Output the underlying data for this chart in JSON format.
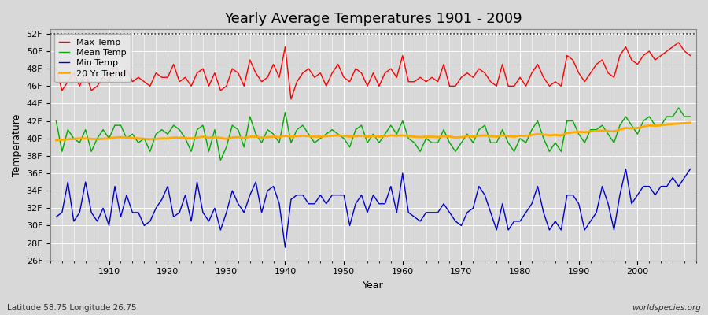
{
  "title": "Yearly Average Temperatures 1901 - 2009",
  "xlabel": "Year",
  "ylabel": "Temperature",
  "subtitle_left": "Latitude 58.75 Longitude 26.75",
  "subtitle_right": "worldspecies.org",
  "ylim": [
    26,
    52.5
  ],
  "yticks": [
    26,
    28,
    30,
    32,
    34,
    36,
    38,
    40,
    42,
    44,
    46,
    48,
    50,
    52
  ],
  "ytick_labels": [
    "26F",
    "28F",
    "30F",
    "32F",
    "34F",
    "36F",
    "38F",
    "40F",
    "42F",
    "44F",
    "46F",
    "48F",
    "50F",
    "52F"
  ],
  "years": [
    1901,
    1902,
    1903,
    1904,
    1905,
    1906,
    1907,
    1908,
    1909,
    1910,
    1911,
    1912,
    1913,
    1914,
    1915,
    1916,
    1917,
    1918,
    1919,
    1920,
    1921,
    1922,
    1923,
    1924,
    1925,
    1926,
    1927,
    1928,
    1929,
    1930,
    1931,
    1932,
    1933,
    1934,
    1935,
    1936,
    1937,
    1938,
    1939,
    1940,
    1941,
    1942,
    1943,
    1944,
    1945,
    1946,
    1947,
    1948,
    1949,
    1950,
    1951,
    1952,
    1953,
    1954,
    1955,
    1956,
    1957,
    1958,
    1959,
    1960,
    1961,
    1962,
    1963,
    1964,
    1965,
    1966,
    1967,
    1968,
    1969,
    1970,
    1971,
    1972,
    1973,
    1974,
    1975,
    1976,
    1977,
    1978,
    1979,
    1980,
    1981,
    1982,
    1983,
    1984,
    1985,
    1986,
    1987,
    1988,
    1989,
    1990,
    1991,
    1992,
    1993,
    1994,
    1995,
    1996,
    1997,
    1998,
    1999,
    2000,
    2001,
    2002,
    2003,
    2004,
    2005,
    2006,
    2007,
    2008,
    2009
  ],
  "max_temp": [
    48.0,
    45.5,
    46.5,
    47.5,
    46.0,
    47.5,
    45.5,
    46.0,
    47.0,
    46.5,
    48.5,
    47.0,
    48.0,
    46.5,
    47.0,
    46.5,
    46.0,
    47.5,
    47.0,
    47.0,
    48.5,
    46.5,
    47.0,
    46.0,
    47.5,
    48.0,
    46.0,
    47.5,
    45.5,
    46.0,
    48.0,
    47.5,
    46.0,
    49.0,
    47.5,
    46.5,
    47.0,
    48.5,
    47.0,
    50.5,
    44.5,
    46.5,
    47.5,
    48.0,
    47.0,
    47.5,
    46.0,
    47.5,
    48.5,
    47.0,
    46.5,
    48.0,
    47.5,
    46.0,
    47.5,
    46.0,
    47.5,
    48.0,
    47.0,
    49.5,
    46.5,
    46.5,
    47.0,
    46.5,
    47.0,
    46.5,
    48.5,
    46.0,
    46.0,
    47.0,
    47.5,
    47.0,
    48.0,
    47.5,
    46.5,
    46.0,
    48.5,
    46.0,
    46.0,
    47.0,
    46.0,
    47.5,
    48.5,
    47.0,
    46.0,
    46.5,
    46.0,
    49.5,
    49.0,
    47.5,
    46.5,
    47.5,
    48.5,
    49.0,
    47.5,
    47.0,
    49.5,
    50.5,
    49.0,
    48.5,
    49.5,
    50.0,
    49.0,
    49.5,
    50.0,
    50.5,
    51.0,
    50.0,
    49.5
  ],
  "mean_temp": [
    42.0,
    38.5,
    41.0,
    40.0,
    39.5,
    41.0,
    38.5,
    40.0,
    41.0,
    40.0,
    41.5,
    41.5,
    40.0,
    40.5,
    39.5,
    40.0,
    38.5,
    40.5,
    41.0,
    40.5,
    41.5,
    41.0,
    40.0,
    38.5,
    41.0,
    41.5,
    38.5,
    41.0,
    37.5,
    39.0,
    41.5,
    41.0,
    39.0,
    42.5,
    40.5,
    39.5,
    41.0,
    40.5,
    39.5,
    43.0,
    39.5,
    41.0,
    41.5,
    40.5,
    39.5,
    40.0,
    40.5,
    41.0,
    40.5,
    40.0,
    39.0,
    41.0,
    41.5,
    39.5,
    40.5,
    39.5,
    40.5,
    41.5,
    40.5,
    42.0,
    40.0,
    39.5,
    38.5,
    40.0,
    39.5,
    39.5,
    41.0,
    39.5,
    38.5,
    39.5,
    40.5,
    39.5,
    41.0,
    41.5,
    39.5,
    39.5,
    41.0,
    39.5,
    38.5,
    40.0,
    39.5,
    41.0,
    42.0,
    40.0,
    38.5,
    39.5,
    38.5,
    42.0,
    42.0,
    40.5,
    39.5,
    41.0,
    41.0,
    41.5,
    40.5,
    39.5,
    41.5,
    42.5,
    41.5,
    40.5,
    42.0,
    42.5,
    41.5,
    41.5,
    42.5,
    42.5,
    43.5,
    42.5,
    42.5
  ],
  "min_temp": [
    31.0,
    31.5,
    35.0,
    30.5,
    31.5,
    35.0,
    31.5,
    30.5,
    32.0,
    30.0,
    34.5,
    31.0,
    33.5,
    31.5,
    31.5,
    30.0,
    30.5,
    32.0,
    33.0,
    34.5,
    31.0,
    31.5,
    33.5,
    30.5,
    35.0,
    31.5,
    30.5,
    32.0,
    29.5,
    31.5,
    34.0,
    32.5,
    31.5,
    33.5,
    35.0,
    31.5,
    34.0,
    34.5,
    32.5,
    27.5,
    33.0,
    33.5,
    33.5,
    32.5,
    32.5,
    33.5,
    32.5,
    33.5,
    33.5,
    33.5,
    30.0,
    32.5,
    33.5,
    31.5,
    33.5,
    32.5,
    32.5,
    34.5,
    31.5,
    36.0,
    31.5,
    31.0,
    30.5,
    31.5,
    31.5,
    31.5,
    32.5,
    31.5,
    30.5,
    30.0,
    31.5,
    32.0,
    34.5,
    33.5,
    31.5,
    29.5,
    32.5,
    29.5,
    30.5,
    30.5,
    31.5,
    32.5,
    34.5,
    31.5,
    29.5,
    30.5,
    29.5,
    33.5,
    33.5,
    32.5,
    29.5,
    30.5,
    31.5,
    34.5,
    32.5,
    29.5,
    33.5,
    36.5,
    32.5,
    33.5,
    34.5,
    34.5,
    33.5,
    34.5,
    34.5,
    35.5,
    34.5,
    35.5,
    36.5
  ],
  "trend_years": [
    1901,
    1902,
    1903,
    1904,
    1905,
    1906,
    1907,
    1908,
    1909,
    1910,
    1911,
    1912,
    1913,
    1914,
    1915,
    1916,
    1917,
    1918,
    1919,
    1920,
    1921,
    1922,
    1923,
    1924,
    1925,
    1926,
    1927,
    1928,
    1929,
    1930,
    1931,
    1932,
    1933,
    1934,
    1935,
    1936,
    1937,
    1938,
    1939,
    1940,
    1941,
    1942,
    1943,
    1944,
    1945,
    1946,
    1947,
    1948,
    1949,
    1950,
    1951,
    1952,
    1953,
    1954,
    1955,
    1956,
    1957,
    1958,
    1959,
    1960,
    1961,
    1962,
    1963,
    1964,
    1965,
    1966,
    1967,
    1968,
    1969,
    1970,
    1971,
    1972,
    1973,
    1974,
    1975,
    1976,
    1977,
    1978,
    1979,
    1980,
    1981,
    1982,
    1983,
    1984,
    1985,
    1986,
    1987,
    1988,
    1989,
    1990,
    1991,
    1992,
    1993,
    1994,
    1995,
    1996,
    1997,
    1998,
    1999,
    2000,
    2001,
    2002,
    2003,
    2004,
    2005,
    2006,
    2007,
    2008,
    2009
  ],
  "trend_vals": [
    39.8,
    39.85,
    39.9,
    39.95,
    40.0,
    40.0,
    39.95,
    39.9,
    39.95,
    40.0,
    40.1,
    40.15,
    40.1,
    40.05,
    40.0,
    39.95,
    39.9,
    39.95,
    40.0,
    40.0,
    40.1,
    40.1,
    40.05,
    40.0,
    40.1,
    40.2,
    40.1,
    40.15,
    40.05,
    39.95,
    40.1,
    40.15,
    40.05,
    40.2,
    40.2,
    40.1,
    40.15,
    40.2,
    40.15,
    40.3,
    40.2,
    40.25,
    40.3,
    40.25,
    40.2,
    40.2,
    40.25,
    40.3,
    40.35,
    40.3,
    40.2,
    40.25,
    40.3,
    40.2,
    40.25,
    40.2,
    40.25,
    40.35,
    40.3,
    40.35,
    40.25,
    40.2,
    40.15,
    40.2,
    40.2,
    40.15,
    40.25,
    40.2,
    40.1,
    40.15,
    40.25,
    40.2,
    40.3,
    40.35,
    40.25,
    40.2,
    40.35,
    40.25,
    40.2,
    40.3,
    40.3,
    40.4,
    40.5,
    40.45,
    40.35,
    40.4,
    40.35,
    40.6,
    40.7,
    40.75,
    40.7,
    40.8,
    40.85,
    40.9,
    40.85,
    40.8,
    41.0,
    41.2,
    41.15,
    41.2,
    41.35,
    41.5,
    41.45,
    41.5,
    41.6,
    41.65,
    41.7,
    41.75,
    41.8
  ],
  "max_color": "#ff0000",
  "mean_color": "#00aa00",
  "min_color": "#0000cc",
  "trend_color": "#ffaa00",
  "bg_color": "#d8d8d8",
  "plot_bg_color": "#d8d8d8",
  "grid_color": "#ffffff",
  "dashed_line_y": 52,
  "legend_loc": "upper left"
}
